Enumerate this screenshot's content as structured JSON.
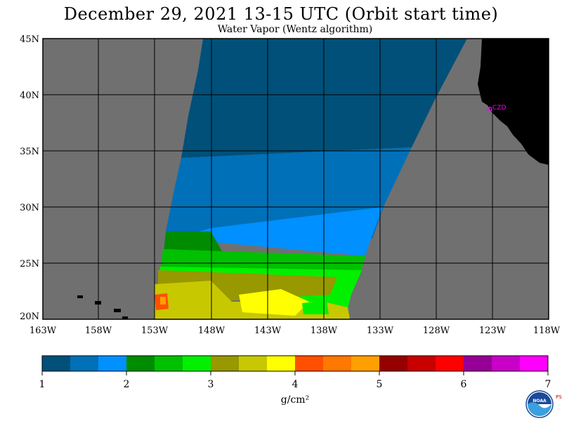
{
  "title": "December 29, 2021  13-15 UTC  (Orbit start time)",
  "subtitle": "Water Vapor (Wentz algorithm)",
  "lat_labels": [
    "45N",
    "40N",
    "35N",
    "30N",
    "25N",
    "20N"
  ],
  "lon_labels": [
    "163W",
    "158W",
    "153W",
    "148W",
    "143W",
    "138W",
    "133W",
    "128W",
    "123W",
    "118W"
  ],
  "colorbar": {
    "ticks": [
      "1",
      "2",
      "3",
      "4",
      "5",
      "6",
      "7"
    ],
    "unit": "g/cm²",
    "colors": [
      "#00507a",
      "#0070b8",
      "#0090ff",
      "#008c00",
      "#00c000",
      "#00f000",
      "#989800",
      "#c8c800",
      "#ffff00",
      "#ff5000",
      "#ff7800",
      "#ffa000",
      "#960000",
      "#c80000",
      "#ff0000",
      "#960096",
      "#c800c8",
      "#ff00ff"
    ]
  },
  "station_label": "CZD",
  "colors": {
    "land": "#000000",
    "no_data": "#707070",
    "grid": "#000000"
  },
  "logo_text": "NOAA",
  "logo_side_text": "PSL"
}
